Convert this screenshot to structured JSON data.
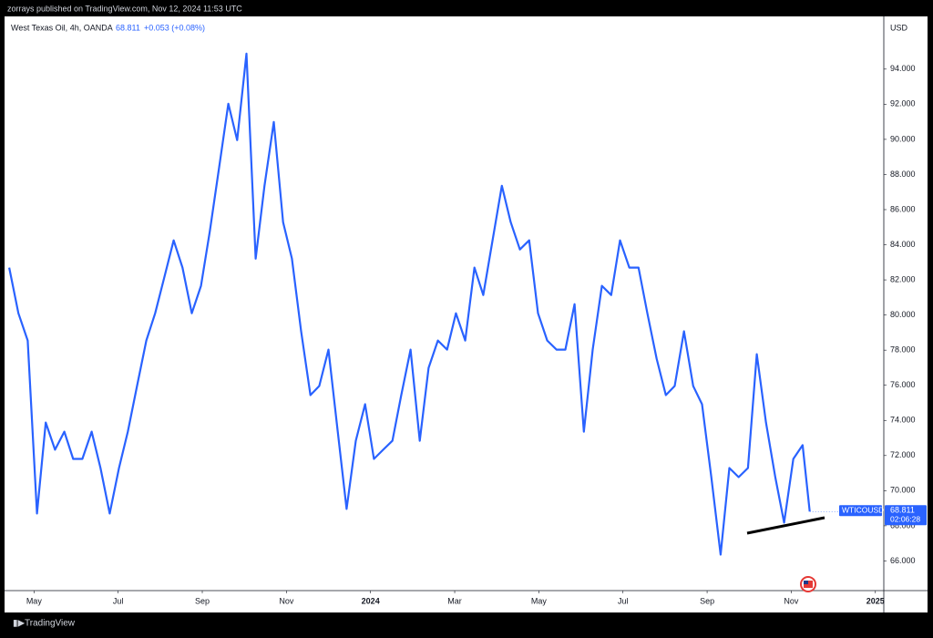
{
  "header": "zorrays published on TradingView.com, Nov 12, 2024 11:53 UTC",
  "footer": "TradingView",
  "chart_data": {
    "type": "line",
    "title": "West Texas Oil, 4h, OANDA",
    "change": "+0.053 (+0.08%)",
    "y_axis_label": "USD",
    "symbol": "WTICOUSD",
    "countdown": "02:06:28",
    "x": [
      4.41,
      4.63,
      4.85,
      5.07,
      5.28,
      5.5,
      5.72,
      5.93,
      6.15,
      6.37,
      6.58,
      6.8,
      7.02,
      7.23,
      7.45,
      7.67,
      7.88,
      8.1,
      8.32,
      8.53,
      8.75,
      8.97,
      9.18,
      9.4,
      9.62,
      9.83,
      10.05,
      10.27,
      10.48,
      10.7,
      10.92,
      11.13,
      11.35,
      11.57,
      11.78,
      12.0,
      12.22,
      12.43,
      12.65,
      12.87,
      13.08,
      13.3,
      13.52,
      13.73,
      13.95,
      14.17,
      14.38,
      14.6,
      14.82,
      15.03,
      15.25,
      15.47,
      15.68,
      15.9,
      16.12,
      16.33,
      16.55,
      16.77,
      16.98,
      17.2,
      17.42,
      17.63,
      17.85,
      18.07,
      18.28,
      18.5,
      18.72,
      18.93,
      19.15,
      19.37,
      19.58,
      19.8,
      20.02,
      20.23,
      20.45,
      20.67,
      20.88,
      21.1,
      21.32,
      21.53,
      21.75,
      21.97,
      22.18,
      22.4,
      22.62,
      22.83,
      23.05,
      23.27,
      23.44
    ],
    "series": [
      {
        "name": "WTICOUSD",
        "color": "#2962ff",
        "values": [
          82.7,
          80.1,
          78.55,
          68.7,
          73.88,
          72.33,
          73.36,
          71.81,
          71.81,
          73.36,
          71.29,
          68.7,
          71.29,
          73.36,
          75.96,
          78.55,
          80.1,
          82.18,
          84.25,
          82.7,
          80.1,
          81.66,
          84.77,
          88.4,
          92.03,
          89.96,
          94.88,
          83.21,
          87.36,
          90.99,
          85.29,
          83.21,
          79.07,
          75.44,
          75.96,
          78.03,
          73.36,
          68.96,
          72.84,
          74.92,
          71.81,
          72.33,
          72.84,
          75.44,
          78.03,
          72.84,
          76.99,
          78.55,
          78.03,
          80.1,
          78.55,
          82.7,
          81.14,
          84.25,
          87.36,
          85.29,
          83.73,
          84.25,
          80.1,
          78.55,
          78.03,
          78.03,
          80.62,
          73.36,
          78.03,
          81.66,
          81.14,
          84.25,
          82.7,
          82.7,
          80.1,
          77.51,
          75.44,
          75.96,
          79.07,
          75.96,
          74.92,
          70.77,
          66.36,
          71.29,
          70.77,
          71.29,
          77.77,
          73.88,
          70.77,
          68.18,
          71.81,
          72.59,
          68.811
        ]
      }
    ],
    "xlim": [
      4.3,
      25.2
    ],
    "xticks": [
      {
        "value": 5,
        "label": "May"
      },
      {
        "value": 7,
        "label": "Jul"
      },
      {
        "value": 9,
        "label": "Sep"
      },
      {
        "value": 11,
        "label": "Nov"
      },
      {
        "value": 13,
        "label": "2024"
      },
      {
        "value": 15,
        "label": "Mar"
      },
      {
        "value": 17,
        "label": "May"
      },
      {
        "value": 19,
        "label": "Jul"
      },
      {
        "value": 21,
        "label": "Sep"
      },
      {
        "value": 23,
        "label": "Nov"
      },
      {
        "value": 25,
        "label": "2025"
      }
    ],
    "ylim": [
      64.31,
      97.0
    ],
    "yticks": [
      {
        "value": 66,
        "label": "66.000"
      },
      {
        "value": 68,
        "label": "68.000"
      },
      {
        "value": 70,
        "label": "70.000"
      },
      {
        "value": 72,
        "label": "72.000"
      },
      {
        "value": 74,
        "label": "74.000"
      },
      {
        "value": 76,
        "label": "76.000"
      },
      {
        "value": 78,
        "label": "78.000"
      },
      {
        "value": 80,
        "label": "80.000"
      },
      {
        "value": 82,
        "label": "82.000"
      },
      {
        "value": 84,
        "label": "84.000"
      },
      {
        "value": 86,
        "label": "86.000"
      },
      {
        "value": 88,
        "label": "88.000"
      },
      {
        "value": 90,
        "label": "90.000"
      },
      {
        "value": 92,
        "label": "92.000"
      },
      {
        "value": 94,
        "label": "94.000"
      }
    ],
    "grid": false
  }
}
